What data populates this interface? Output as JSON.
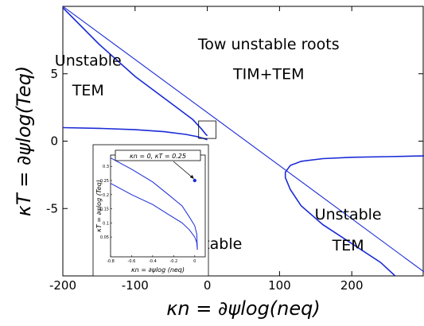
{
  "chart_data": [
    {
      "type": "line",
      "title": "",
      "xlabel": "κn = ∂ψlog(neq)",
      "ylabel": "κT = ∂ψlog(Teq)",
      "xlim": [
        -200,
        300
      ],
      "ylim": [
        -10,
        10
      ],
      "x_ticks": [
        "-200",
        "-100",
        "0",
        "100",
        "200"
      ],
      "x_tick_values": [
        -200,
        -100,
        0,
        100,
        200
      ],
      "y_ticks": [
        "5",
        "0",
        "-5"
      ],
      "y_tick_values": [
        5,
        0,
        -5
      ],
      "grid": false,
      "legend": "none",
      "color": "#1a2bd6",
      "region_labels": [
        {
          "text": "Unstable",
          "x": -165,
          "y": 5.6
        },
        {
          "text": "TEM",
          "x": -165,
          "y": 3.4
        },
        {
          "text": "Tow unstable roots",
          "x": 85,
          "y": 6.8
        },
        {
          "text": "TIM+TEM",
          "x": 85,
          "y": 4.6
        },
        {
          "text": "Stable",
          "x": 15,
          "y": -8.0
        },
        {
          "text": "Unstable",
          "x": 195,
          "y": -5.8
        },
        {
          "text": "TEM",
          "x": 195,
          "y": -8.1
        }
      ],
      "series": [
        {
          "x": [
            -200,
            300
          ],
          "y": [
            10,
            -9.7
          ]
        },
        {
          "x": [
            -200,
            -150,
            -100,
            -50,
            -20,
            -8,
            -2,
            0
          ],
          "y": [
            9.9,
            7.2,
            4.8,
            2.8,
            1.6,
            0.9,
            0.5,
            0.4
          ]
        },
        {
          "x": [
            -200,
            -150,
            -100,
            -60,
            -30,
            -15,
            -5,
            0
          ],
          "y": [
            1.0,
            0.95,
            0.85,
            0.7,
            0.5,
            0.35,
            0.2,
            0.1
          ]
        },
        {
          "x": [
            300,
            250,
            200,
            160,
            130,
            115,
            108,
            108,
            115,
            130,
            160,
            200,
            240,
            260
          ],
          "y": [
            -1.1,
            -1.15,
            -1.2,
            -1.3,
            -1.5,
            -1.8,
            -2.3,
            -2.7,
            -3.6,
            -4.8,
            -6.2,
            -7.6,
            -9.0,
            -10
          ]
        }
      ]
    },
    {
      "type": "line",
      "title": "",
      "xlabel": "κn = ∂ψlog (neq)",
      "ylabel": "κT = ∂ψlog (Teq)",
      "xlim": [
        -0.8,
        0.1
      ],
      "ylim": [
        -0.02,
        0.34
      ],
      "x_ticks": [
        "-0.8",
        "-0.6",
        "-0.4",
        "-0.2",
        "0"
      ],
      "x_tick_values": [
        -0.8,
        -0.6,
        -0.4,
        -0.2,
        0
      ],
      "y_ticks": [
        "0.3",
        "0.25",
        "0.2",
        "0.15",
        "0.1",
        "0.05"
      ],
      "y_tick_values": [
        0.3,
        0.25,
        0.2,
        0.15,
        0.1,
        0.05
      ],
      "grid": false,
      "legend": "none",
      "annotation": {
        "text": "κn = 0,    κT = 0.25",
        "point": [
          0,
          0.25
        ]
      },
      "series": [
        {
          "x": [
            -0.8,
            -0.6,
            -0.4,
            -0.25,
            -0.12,
            -0.05,
            0,
            0.02,
            0.025
          ],
          "y": [
            0.33,
            0.29,
            0.245,
            0.2,
            0.16,
            0.12,
            0.09,
            0.06,
            0.005
          ]
        },
        {
          "x": [
            -0.8,
            -0.6,
            -0.4,
            -0.25,
            -0.12,
            -0.05,
            0,
            0.02,
            0.025
          ],
          "y": [
            0.24,
            0.2,
            0.165,
            0.13,
            0.1,
            0.075,
            0.05,
            0.03,
            0.005
          ]
        }
      ]
    }
  ]
}
